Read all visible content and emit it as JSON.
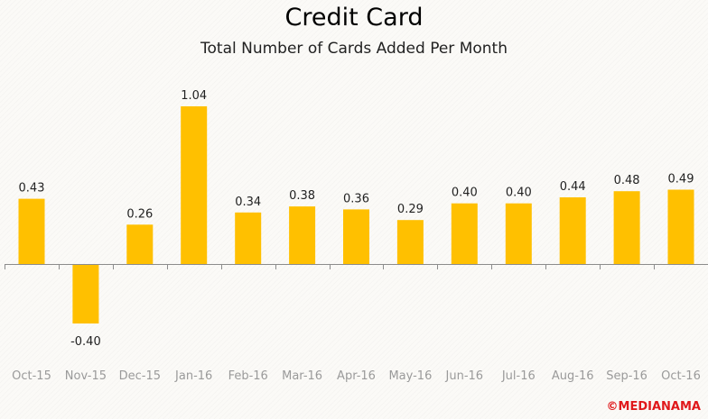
{
  "chart_data": {
    "type": "bar",
    "title": "Credit Card",
    "subtitle": "Total Number of Cards Added Per Month",
    "xlabel": "",
    "ylabel": "",
    "categories": [
      "Oct-15",
      "Nov-15",
      "Dec-15",
      "Jan-16",
      "Feb-16",
      "Mar-16",
      "Apr-16",
      "May-16",
      "Jun-16",
      "Jul-16",
      "Aug-16",
      "Sep-16",
      "Oct-16"
    ],
    "values": [
      0.43,
      -0.4,
      0.26,
      1.04,
      0.34,
      0.38,
      0.36,
      0.29,
      0.4,
      0.4,
      0.44,
      0.48,
      0.49
    ],
    "value_labels": [
      "0.43",
      "-0.40",
      "0.26",
      "1.04",
      "0.34",
      "0.38",
      "0.36",
      "0.29",
      "0.40",
      "0.40",
      "0.44",
      "0.48",
      "0.49"
    ],
    "ylim": [
      -0.4,
      1.04
    ],
    "grid": false,
    "legend": "none",
    "bar_color": "#ffc000",
    "axis_color": "#8c8c8c"
  },
  "watermark": "©MEDIANAMA"
}
